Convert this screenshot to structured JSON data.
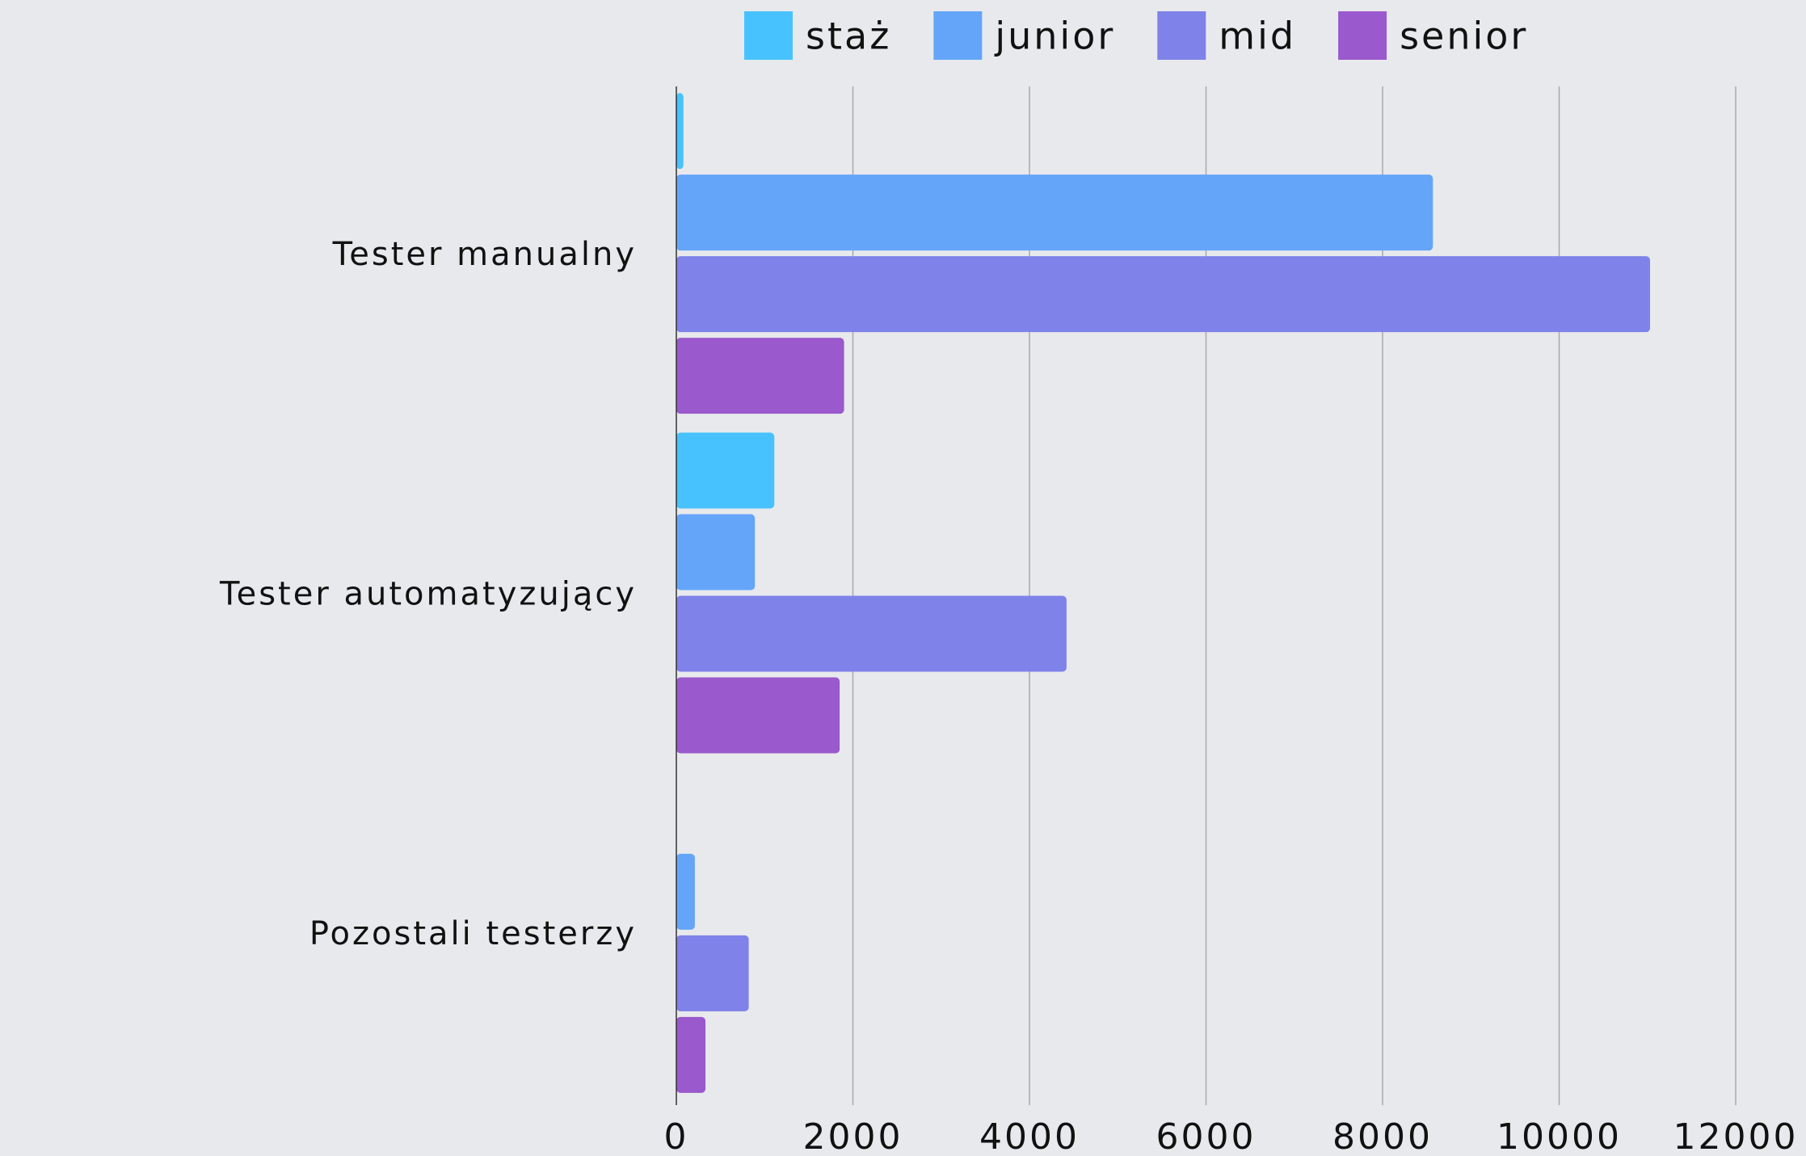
{
  "chart_data": {
    "type": "barh",
    "categories": [
      "Tester manualny",
      "Tester automatyzujący",
      "Pozostali testerzy"
    ],
    "series": [
      {
        "name": "staż",
        "color": "#48c2fe",
        "values": [
          80,
          1110,
          0
        ]
      },
      {
        "name": "junior",
        "color": "#64a5fa",
        "values": [
          8570,
          890,
          210
        ]
      },
      {
        "name": "mid",
        "color": "#7f82e8",
        "values": [
          11030,
          4420,
          820
        ]
      },
      {
        "name": "senior",
        "color": "#9a59cc",
        "values": [
          1900,
          1850,
          330
        ]
      }
    ],
    "xlim": [
      0,
      12000
    ],
    "xticks": [
      0,
      2000,
      4000,
      6000,
      8000,
      10000,
      12000
    ],
    "grid": true,
    "legend": "top"
  }
}
